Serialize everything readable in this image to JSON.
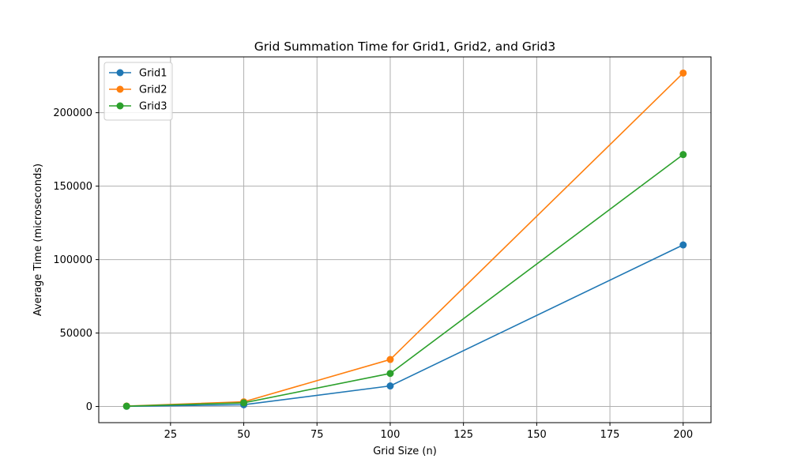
{
  "chart_data": {
    "type": "line",
    "title": "Grid Summation Time for Grid1, Grid2, and Grid3",
    "xlabel": "Grid Size (n)",
    "ylabel": "Average Time (microseconds)",
    "x": [
      10,
      50,
      100,
      200
    ],
    "xlim": [
      0.5,
      209.5
    ],
    "ylim": [
      -11000,
      238000
    ],
    "xticks": [
      25,
      50,
      75,
      100,
      125,
      150,
      175,
      200
    ],
    "yticks": [
      0,
      50000,
      100000,
      150000,
      200000
    ],
    "xtick_labels": [
      "25",
      "50",
      "75",
      "100",
      "125",
      "150",
      "175",
      "200"
    ],
    "ytick_labels": [
      "0",
      "50000",
      "100000",
      "150000",
      "200000"
    ],
    "grid": true,
    "legend_position": "top-left",
    "series": [
      {
        "name": "Grid1",
        "color": "#1f77b4",
        "values": [
          150,
          1200,
          14000,
          110000
        ]
      },
      {
        "name": "Grid2",
        "color": "#ff7f0e",
        "values": [
          300,
          3200,
          32000,
          227000
        ]
      },
      {
        "name": "Grid3",
        "color": "#2ca02c",
        "values": [
          200,
          2500,
          22500,
          171500
        ]
      }
    ]
  }
}
